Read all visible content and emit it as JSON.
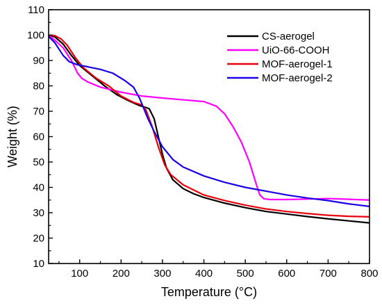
{
  "chart_data": {
    "type": "line",
    "xlabel": "Temperature (°C)",
    "ylabel": "Weight (%)",
    "xlim": [
      25,
      800
    ],
    "ylim": [
      10,
      110
    ],
    "x_ticks": [
      100,
      200,
      300,
      400,
      500,
      600,
      700,
      800
    ],
    "y_ticks": [
      10,
      20,
      30,
      40,
      50,
      60,
      70,
      80,
      90,
      100,
      110
    ],
    "grid": false,
    "legend_position": "top-right",
    "series": [
      {
        "name": "CS-aerogel",
        "color": "#000000",
        "points": [
          [
            25,
            100
          ],
          [
            40,
            99.3
          ],
          [
            60,
            96.5
          ],
          [
            80,
            92
          ],
          [
            100,
            88
          ],
          [
            130,
            84
          ],
          [
            160,
            80
          ],
          [
            190,
            76.5
          ],
          [
            220,
            74
          ],
          [
            245,
            72.2
          ],
          [
            260,
            71.5
          ],
          [
            268,
            71
          ],
          [
            280,
            67
          ],
          [
            290,
            60
          ],
          [
            300,
            53
          ],
          [
            310,
            47.5
          ],
          [
            325,
            43
          ],
          [
            350,
            39.5
          ],
          [
            375,
            37.5
          ],
          [
            400,
            36
          ],
          [
            450,
            33.8
          ],
          [
            500,
            32
          ],
          [
            550,
            30.5
          ],
          [
            600,
            29.5
          ],
          [
            650,
            28.5
          ],
          [
            700,
            27.6
          ],
          [
            750,
            26.8
          ],
          [
            800,
            26
          ]
        ]
      },
      {
        "name": "UiO-66-COOH",
        "color": "#ff00ff",
        "points": [
          [
            25,
            100
          ],
          [
            40,
            98
          ],
          [
            60,
            95
          ],
          [
            80,
            90
          ],
          [
            95,
            85
          ],
          [
            105,
            83
          ],
          [
            120,
            81.5
          ],
          [
            150,
            79.5
          ],
          [
            200,
            77.5
          ],
          [
            250,
            76
          ],
          [
            300,
            75.2
          ],
          [
            350,
            74.5
          ],
          [
            400,
            73.8
          ],
          [
            430,
            72
          ],
          [
            450,
            69
          ],
          [
            470,
            64
          ],
          [
            490,
            58
          ],
          [
            510,
            50
          ],
          [
            525,
            42
          ],
          [
            535,
            37
          ],
          [
            545,
            35.5
          ],
          [
            560,
            35.2
          ],
          [
            600,
            35.2
          ],
          [
            650,
            35.4
          ],
          [
            700,
            35.6
          ],
          [
            750,
            35.3
          ],
          [
            800,
            35
          ]
        ]
      },
      {
        "name": "MOF-aerogel-1",
        "color": "#e8000b",
        "points": [
          [
            25,
            100
          ],
          [
            40,
            99.8
          ],
          [
            55,
            98.5
          ],
          [
            70,
            96
          ],
          [
            90,
            91
          ],
          [
            110,
            87
          ],
          [
            140,
            83
          ],
          [
            170,
            80
          ],
          [
            200,
            76
          ],
          [
            230,
            73.5
          ],
          [
            250,
            72.5
          ],
          [
            260,
            70.5
          ],
          [
            275,
            64
          ],
          [
            290,
            56
          ],
          [
            305,
            49
          ],
          [
            320,
            45
          ],
          [
            350,
            41
          ],
          [
            400,
            37
          ],
          [
            450,
            34.8
          ],
          [
            500,
            33
          ],
          [
            550,
            31.5
          ],
          [
            600,
            30.5
          ],
          [
            650,
            29.7
          ],
          [
            700,
            29
          ],
          [
            750,
            28.6
          ],
          [
            800,
            28.4
          ]
        ]
      },
      {
        "name": "MOF-aerogel-2",
        "color": "#1a00e6",
        "points": [
          [
            25,
            99.5
          ],
          [
            40,
            97
          ],
          [
            60,
            92
          ],
          [
            75,
            89.5
          ],
          [
            95,
            88.3
          ],
          [
            120,
            87.5
          ],
          [
            150,
            86.5
          ],
          [
            180,
            85
          ],
          [
            210,
            82
          ],
          [
            230,
            79.5
          ],
          [
            245,
            75
          ],
          [
            255,
            71
          ],
          [
            265,
            67
          ],
          [
            280,
            62
          ],
          [
            300,
            56
          ],
          [
            325,
            51
          ],
          [
            350,
            48
          ],
          [
            400,
            44.5
          ],
          [
            450,
            42
          ],
          [
            500,
            40
          ],
          [
            550,
            38.5
          ],
          [
            600,
            37
          ],
          [
            650,
            35.8
          ],
          [
            700,
            34.8
          ],
          [
            750,
            33.5
          ],
          [
            800,
            32.5
          ]
        ]
      }
    ]
  }
}
